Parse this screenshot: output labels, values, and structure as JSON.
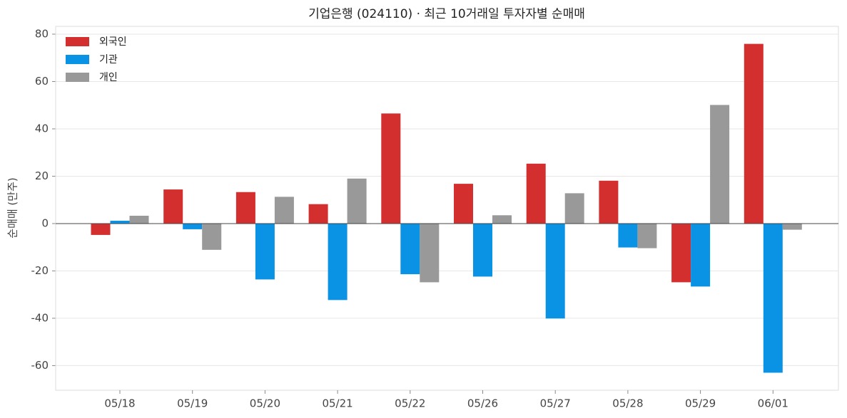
{
  "chart_data": {
    "type": "bar",
    "title": "기업은행 (024110) · 최근 10거래일 투자자별 순매매",
    "y_label": "순매매 (만주)",
    "categories": [
      "05/18",
      "05/19",
      "05/20",
      "05/21",
      "05/22",
      "05/26",
      "05/27",
      "05/28",
      "05/29",
      "06/01"
    ],
    "series": [
      {
        "name": "외국인",
        "color": "#d32f2f",
        "values": [
          -4.8,
          14.4,
          13.3,
          8.2,
          46.5,
          16.8,
          25.3,
          18.1,
          -24.8,
          75.9
        ]
      },
      {
        "name": "기관",
        "color": "#0a92e4",
        "values": [
          1.2,
          -2.4,
          -23.6,
          -32.3,
          -21.4,
          -22.4,
          -40.1,
          -10.1,
          -26.6,
          -63.0
        ]
      },
      {
        "name": "개인",
        "color": "#999999",
        "values": [
          3.3,
          -11.1,
          11.3,
          19.0,
          -24.8,
          3.5,
          12.8,
          -10.4,
          50.1,
          -2.6
        ]
      }
    ],
    "ylim": [
      -70.4,
      83.3
    ],
    "yticks": [
      -60,
      -40,
      -20,
      0,
      20,
      40,
      60,
      80
    ],
    "grid": true,
    "legend": "upper-left"
  }
}
